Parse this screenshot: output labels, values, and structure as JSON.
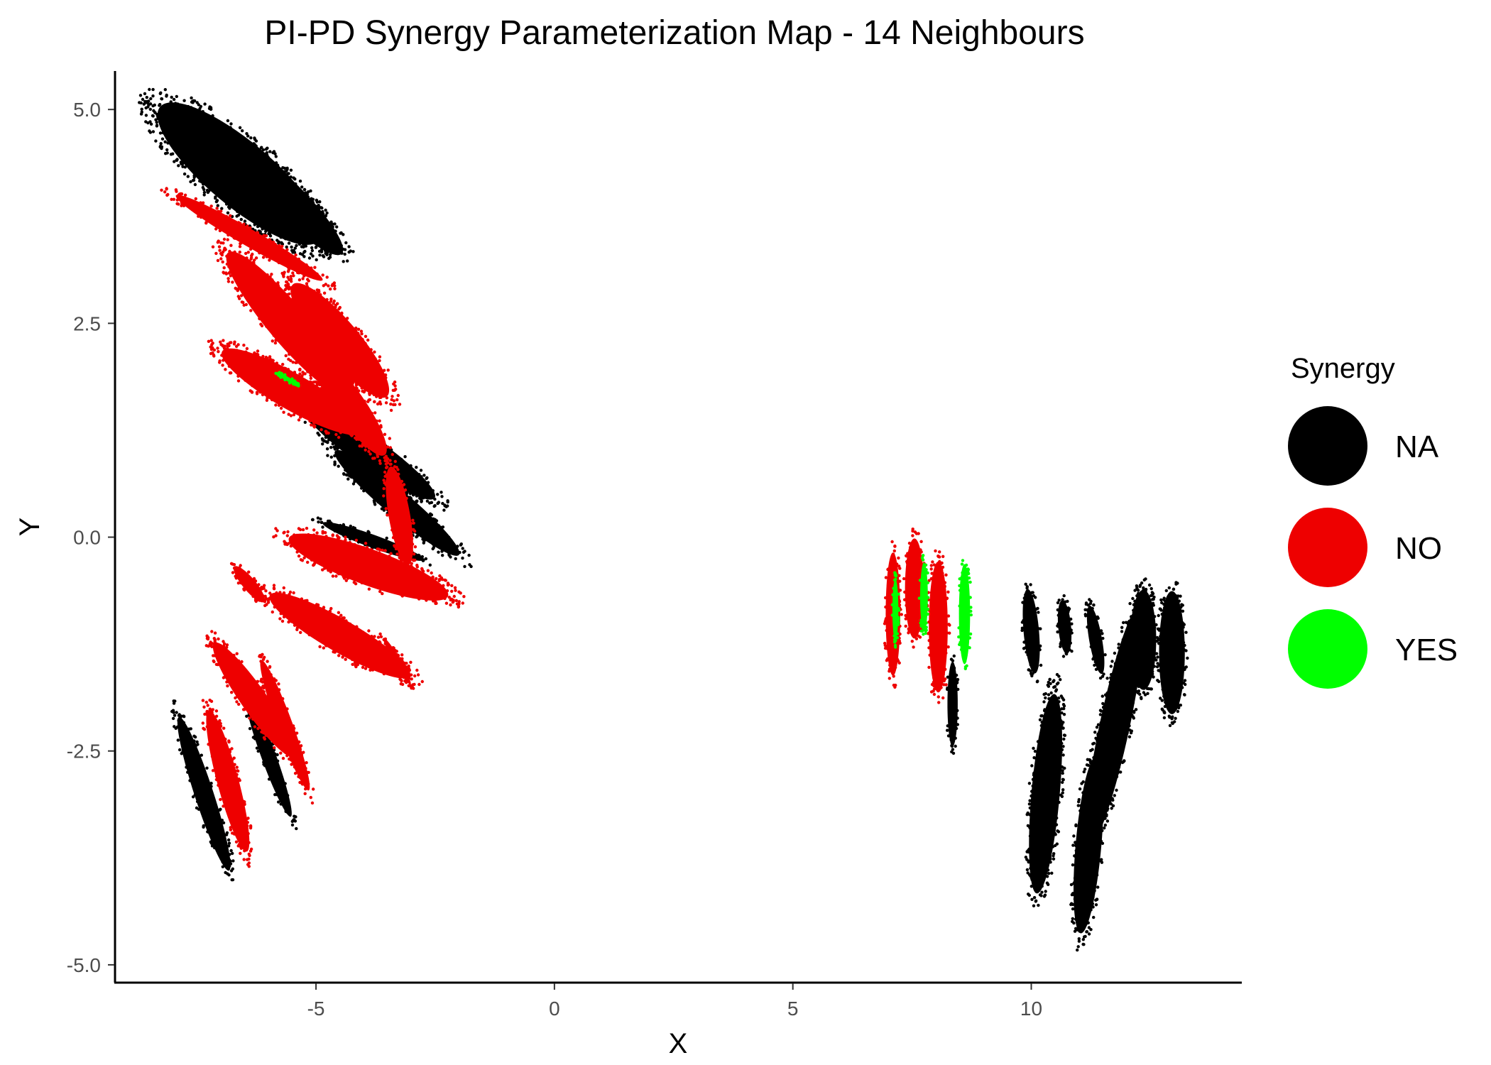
{
  "chart_data": {
    "type": "scatter",
    "title": "PI-PD Synergy Parameterization Map - 14 Neighbours",
    "xlabel": "X",
    "ylabel": "Y",
    "xlim": [
      -9.2,
      14.4
    ],
    "ylim": [
      -5.2,
      5.45
    ],
    "xticks": [
      -5,
      0,
      5,
      10
    ],
    "xtick_labels": [
      "-5",
      "0",
      "5",
      "10"
    ],
    "yticks": [
      5.0,
      2.5,
      0.0,
      -2.5,
      -5.0
    ],
    "ytick_labels": [
      "5.0",
      "2.5",
      "0.0",
      "-2.5",
      "-5.0"
    ],
    "grid": false,
    "legend": {
      "title": "Synergy",
      "placement": "right",
      "entries": [
        {
          "label": "NA",
          "color": "#000000"
        },
        {
          "label": "NO",
          "color": "#ee0000"
        },
        {
          "label": "YES",
          "color": "#00ff00"
        }
      ]
    },
    "series": [
      {
        "name": "NA",
        "color": "#000000",
        "clusters": [
          {
            "cx": -6.6,
            "cy": 4.25,
            "rx": 0.75,
            "ry": 1.35,
            "angle": 50
          },
          {
            "cx": -5.6,
            "cy": 3.95,
            "rx": 0.4,
            "ry": 1.0,
            "angle": 45
          },
          {
            "cx": -3.9,
            "cy": 1.0,
            "rx": 0.35,
            "ry": 1.05,
            "angle": 55
          },
          {
            "cx": -3.3,
            "cy": 0.4,
            "rx": 0.3,
            "ry": 1.05,
            "angle": 50
          },
          {
            "cx": -3.8,
            "cy": -0.05,
            "rx": 0.15,
            "ry": 0.7,
            "angle": 70
          },
          {
            "cx": -7.35,
            "cy": -3.0,
            "rx": 0.22,
            "ry": 1.05,
            "angle": 18
          },
          {
            "cx": -6.0,
            "cy": -2.55,
            "rx": 0.17,
            "ry": 0.85,
            "angle": 20
          },
          {
            "cx": 8.35,
            "cy": -1.95,
            "rx": 0.12,
            "ry": 0.55,
            "angle": 0
          },
          {
            "cx": 10.0,
            "cy": -1.1,
            "rx": 0.18,
            "ry": 0.55,
            "angle": 5
          },
          {
            "cx": 10.7,
            "cy": -1.05,
            "rx": 0.15,
            "ry": 0.35,
            "angle": 5
          },
          {
            "cx": 11.35,
            "cy": -1.2,
            "rx": 0.15,
            "ry": 0.45,
            "angle": 10
          },
          {
            "cx": 10.3,
            "cy": -3.0,
            "rx": 0.33,
            "ry": 1.3,
            "angle": -5
          },
          {
            "cx": 11.2,
            "cy": -3.6,
            "rx": 0.3,
            "ry": 1.15,
            "angle": -5
          },
          {
            "cx": 11.75,
            "cy": -2.2,
            "rx": 0.35,
            "ry": 1.6,
            "angle": -12
          },
          {
            "cx": 12.35,
            "cy": -1.2,
            "rx": 0.3,
            "ry": 0.65,
            "angle": 0
          },
          {
            "cx": 12.95,
            "cy": -1.35,
            "rx": 0.3,
            "ry": 0.8,
            "angle": 0
          }
        ]
      },
      {
        "name": "NO",
        "color": "#ee0000",
        "clusters": [
          {
            "cx": -6.4,
            "cy": 3.5,
            "rx": 0.2,
            "ry": 1.1,
            "angle": 60
          },
          {
            "cx": -5.6,
            "cy": 2.5,
            "rx": 0.45,
            "ry": 1.2,
            "angle": 40
          },
          {
            "cx": -4.5,
            "cy": 2.3,
            "rx": 0.45,
            "ry": 0.95,
            "angle": 40
          },
          {
            "cx": -5.5,
            "cy": 1.7,
            "rx": 0.42,
            "ry": 1.05,
            "angle": 60
          },
          {
            "cx": -4.3,
            "cy": 1.55,
            "rx": 0.35,
            "ry": 0.8,
            "angle": 35
          },
          {
            "cx": -3.9,
            "cy": -0.35,
            "rx": 0.42,
            "ry": 1.1,
            "angle": 70
          },
          {
            "cx": -3.25,
            "cy": 0.25,
            "rx": 0.25,
            "ry": 0.65,
            "angle": 10
          },
          {
            "cx": -4.5,
            "cy": -1.15,
            "rx": 0.38,
            "ry": 1.05,
            "angle": 60
          },
          {
            "cx": -6.4,
            "cy": -0.55,
            "rx": 0.15,
            "ry": 0.3,
            "angle": 40
          },
          {
            "cx": -3.3,
            "cy": -1.45,
            "rx": 0.08,
            "ry": 0.35,
            "angle": 30
          },
          {
            "cx": -6.3,
            "cy": -1.9,
            "rx": 0.3,
            "ry": 0.9,
            "angle": 35
          },
          {
            "cx": -6.85,
            "cy": -2.85,
            "rx": 0.25,
            "ry": 0.95,
            "angle": 15
          },
          {
            "cx": -5.65,
            "cy": -2.2,
            "rx": 0.18,
            "ry": 0.9,
            "angle": 20
          },
          {
            "cx": 7.1,
            "cy": -0.9,
            "rx": 0.17,
            "ry": 0.8,
            "angle": 0
          },
          {
            "cx": 7.55,
            "cy": -0.6,
            "rx": 0.22,
            "ry": 0.65,
            "angle": 0
          },
          {
            "cx": 8.05,
            "cy": -1.05,
            "rx": 0.22,
            "ry": 0.85,
            "angle": 0
          }
        ]
      },
      {
        "name": "YES",
        "color": "#00ff00",
        "clusters": [
          {
            "cx": 8.6,
            "cy": -0.9,
            "rx": 0.13,
            "ry": 0.65,
            "angle": 0
          },
          {
            "cx": 7.75,
            "cy": -0.7,
            "rx": 0.09,
            "ry": 0.45,
            "angle": 0
          },
          {
            "cx": 7.15,
            "cy": -0.85,
            "rx": 0.07,
            "ry": 0.4,
            "angle": 0
          },
          {
            "cx": -5.6,
            "cy": 1.85,
            "rx": 0.05,
            "ry": 0.15,
            "angle": 60
          }
        ]
      }
    ]
  }
}
